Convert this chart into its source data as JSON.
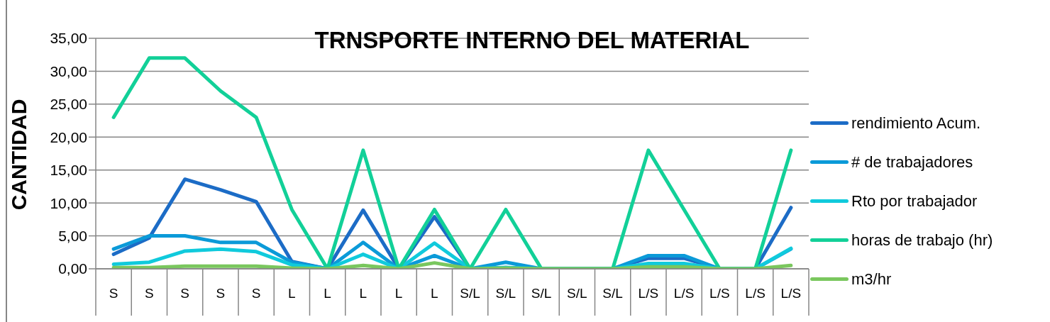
{
  "chart_data": {
    "type": "line",
    "title": "TRNSPORTE INTERNO DEL MATERIAL",
    "ylabel": "CANTIDAD",
    "categories": [
      "S",
      "S",
      "S",
      "S",
      "S",
      "L",
      "L",
      "L",
      "L",
      "L",
      "S/L",
      "S/L",
      "S/L",
      "S/L",
      "S/L",
      "L/S",
      "L/S",
      "L/S",
      "L/S",
      "L/S"
    ],
    "series": [
      {
        "name": "rendimiento Acum.",
        "color": "#1c6cc6",
        "values": [
          2.2,
          4.7,
          13.6,
          12,
          10.2,
          1.1,
          0,
          8.9,
          0,
          7.9,
          0,
          0.2,
          0,
          0,
          0,
          1.6,
          1.6,
          0,
          0,
          9.3
        ]
      },
      {
        "name": "# de trabajadores",
        "color": "#0b9ad8",
        "values": [
          3,
          5,
          5,
          4,
          4,
          1,
          0,
          4,
          0,
          2,
          0,
          1,
          0,
          0,
          0,
          2,
          2,
          0,
          0,
          3
        ]
      },
      {
        "name": "Rto por trabajador",
        "color": "#10cadc",
        "values": [
          0.7,
          1,
          2.7,
          3,
          2.6,
          0.6,
          0,
          2.2,
          0,
          3.9,
          0,
          0.2,
          0,
          0,
          0,
          0.8,
          0.8,
          0,
          0,
          3.1
        ]
      },
      {
        "name": "horas de trabajo (hr)",
        "color": "#12d098",
        "values": [
          23,
          32,
          32,
          27,
          23,
          9,
          0,
          18,
          0,
          9,
          0,
          9,
          0,
          0,
          0,
          18,
          9,
          0,
          0,
          18
        ]
      },
      {
        "name": "m3/hr",
        "color": "#7ac75e",
        "values": [
          0.2,
          0.2,
          0.4,
          0.4,
          0.4,
          0.1,
          0,
          0.5,
          0,
          0.9,
          0,
          0.1,
          0,
          0,
          0,
          0.3,
          0.3,
          0,
          0,
          0.5
        ]
      }
    ],
    "ylim": [
      0,
      35
    ],
    "yticks": [
      {
        "value": 0,
        "label": "0,00"
      },
      {
        "value": 5,
        "label": "5,00"
      },
      {
        "value": 10,
        "label": "10,00"
      },
      {
        "value": 15,
        "label": "15,00"
      },
      {
        "value": 20,
        "label": "20,00"
      },
      {
        "value": 25,
        "label": "25,00"
      },
      {
        "value": 30,
        "label": "30,00"
      },
      {
        "value": 35,
        "label": "35,00"
      }
    ],
    "grid": "y",
    "legend": "right",
    "marker": "none",
    "line_style": "solid"
  }
}
